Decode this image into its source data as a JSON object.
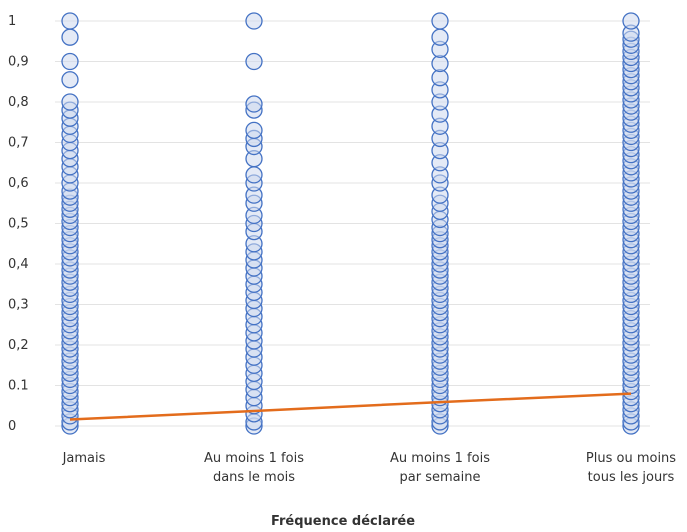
{
  "chart_data": {
    "type": "scatter",
    "title": "",
    "xlabel": "Fréquence déclarée",
    "ylabel": "",
    "ylim": [
      0,
      1
    ],
    "yticks": [
      "0",
      "0.1",
      "0,2",
      "0,3",
      "0,4",
      "0,5",
      "0,6",
      "0,7",
      "0,8",
      "0,9",
      "1"
    ],
    "categories": [
      [
        "Jamais"
      ],
      [
        "Au moins 1 fois",
        "dans le mois"
      ],
      [
        "Au moins 1 fois",
        "par semaine"
      ],
      [
        "Plus ou moins",
        "tous les jours"
      ]
    ],
    "grid": "horizontal",
    "series": [
      {
        "kind": "points",
        "color": "#4472c4",
        "values": [
          [
            0,
            0.01,
            0.025,
            0.04,
            0.055,
            0.07,
            0.085,
            0.1,
            0.115,
            0.13,
            0.145,
            0.16,
            0.175,
            0.19,
            0.205,
            0.22,
            0.235,
            0.25,
            0.265,
            0.28,
            0.295,
            0.31,
            0.325,
            0.34,
            0.355,
            0.37,
            0.385,
            0.4,
            0.415,
            0.43,
            0.445,
            0.46,
            0.475,
            0.49,
            0.505,
            0.52,
            0.535,
            0.55,
            0.565,
            0.58,
            0.6,
            0.62,
            0.64,
            0.66,
            0.68,
            0.7,
            0.72,
            0.74,
            0.76,
            0.78,
            0.8,
            0.855,
            0.9,
            0.96,
            1
          ],
          [
            0,
            0.01,
            0.03,
            0.05,
            0.07,
            0.09,
            0.11,
            0.13,
            0.15,
            0.17,
            0.19,
            0.21,
            0.23,
            0.25,
            0.27,
            0.29,
            0.31,
            0.33,
            0.35,
            0.37,
            0.39,
            0.41,
            0.43,
            0.45,
            0.48,
            0.5,
            0.52,
            0.55,
            0.57,
            0.6,
            0.62,
            0.66,
            0.69,
            0.71,
            0.73,
            0.78,
            0.795,
            0.9,
            1
          ],
          [
            0,
            0.01,
            0.025,
            0.04,
            0.055,
            0.07,
            0.085,
            0.1,
            0.115,
            0.13,
            0.145,
            0.16,
            0.175,
            0.19,
            0.205,
            0.22,
            0.235,
            0.25,
            0.265,
            0.28,
            0.295,
            0.31,
            0.325,
            0.34,
            0.355,
            0.37,
            0.385,
            0.4,
            0.415,
            0.43,
            0.445,
            0.46,
            0.475,
            0.49,
            0.51,
            0.53,
            0.55,
            0.57,
            0.6,
            0.62,
            0.65,
            0.68,
            0.71,
            0.74,
            0.77,
            0.8,
            0.83,
            0.86,
            0.895,
            0.93,
            0.96,
            1
          ],
          [
            0,
            0.01,
            0.025,
            0.04,
            0.055,
            0.07,
            0.085,
            0.1,
            0.115,
            0.13,
            0.145,
            0.16,
            0.175,
            0.19,
            0.205,
            0.22,
            0.235,
            0.25,
            0.265,
            0.28,
            0.295,
            0.31,
            0.325,
            0.34,
            0.355,
            0.37,
            0.385,
            0.4,
            0.415,
            0.43,
            0.445,
            0.46,
            0.475,
            0.49,
            0.505,
            0.52,
            0.535,
            0.55,
            0.565,
            0.58,
            0.595,
            0.61,
            0.625,
            0.64,
            0.655,
            0.67,
            0.685,
            0.7,
            0.715,
            0.73,
            0.745,
            0.76,
            0.775,
            0.79,
            0.805,
            0.82,
            0.835,
            0.85,
            0.865,
            0.88,
            0.895,
            0.91,
            0.925,
            0.94,
            0.955,
            0.97,
            1
          ]
        ]
      },
      {
        "kind": "trendline",
        "color": "#e36c1c",
        "values": [
          0.016,
          0.037,
          0.059,
          0.08
        ]
      }
    ]
  }
}
